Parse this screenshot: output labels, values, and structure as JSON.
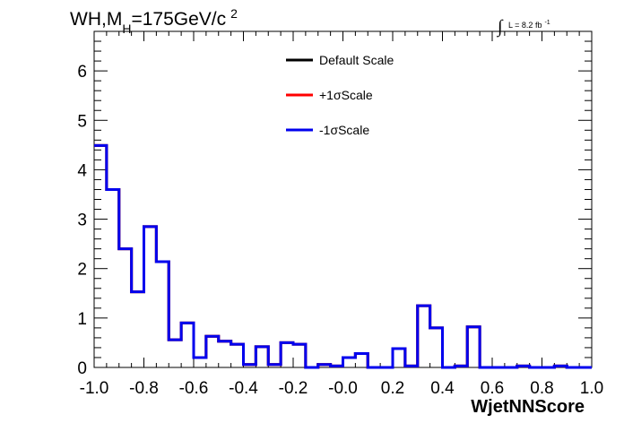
{
  "chart_data": {
    "type": "line",
    "style": "step-histogram",
    "title": {
      "prefix": "WH,M",
      "subscript": "H",
      "suffix": "=175GeV/c",
      "superscript": "2"
    },
    "luminosity": {
      "integral": "∫",
      "text": "L = 8.2 fb",
      "superscript": "-1"
    },
    "xlabel": "WjetNNScore",
    "ylabel": "",
    "xlim": [
      -1.0,
      1.0
    ],
    "ylim": [
      0,
      6.8
    ],
    "x_ticks": [
      -1.0,
      -0.8,
      -0.6,
      -0.4,
      -0.2,
      0.0,
      0.2,
      0.4,
      0.6,
      0.8,
      1.0
    ],
    "x_tick_labels": [
      "-1.0",
      "-0.8",
      "-0.6",
      "-0.4",
      "-0.2",
      "-0.0",
      "0.2",
      "0.4",
      "0.6",
      "0.8",
      "1.0"
    ],
    "y_ticks": [
      0,
      1,
      2,
      3,
      4,
      5,
      6
    ],
    "y_tick_labels": [
      "0",
      "1",
      "2",
      "3",
      "4",
      "5",
      "6"
    ],
    "grid": false,
    "legend_position": "top-center",
    "bin_edges": [
      -1.0,
      -0.95,
      -0.9,
      -0.85,
      -0.8,
      -0.75,
      -0.7,
      -0.65,
      -0.6,
      -0.55,
      -0.5,
      -0.45,
      -0.4,
      -0.35,
      -0.3,
      -0.25,
      -0.2,
      -0.15,
      -0.1,
      -0.05,
      0.0,
      0.05,
      0.1,
      0.15,
      0.2,
      0.25,
      0.3,
      0.35,
      0.4,
      0.45,
      0.5,
      0.55,
      0.6,
      0.65,
      0.7,
      0.75,
      0.8,
      0.85,
      0.9,
      0.95,
      1.0
    ],
    "series": [
      {
        "name": "Default Scale",
        "color": "#000000",
        "values": [
          4.49,
          3.6,
          2.4,
          1.53,
          2.85,
          2.14,
          0.56,
          0.9,
          0.2,
          0.63,
          0.53,
          0.47,
          0.06,
          0.42,
          0.06,
          0.5,
          0.47,
          0.0,
          0.06,
          0.03,
          0.2,
          0.28,
          0.0,
          0.0,
          0.38,
          0.03,
          1.25,
          0.8,
          0.0,
          0.03,
          0.82,
          0.0,
          0.0,
          0.0,
          0.03,
          0.0,
          0.0,
          0.03,
          0.0,
          0.0
        ]
      },
      {
        "name": "+1σScale",
        "color": "#ff0000",
        "values": [
          4.49,
          3.6,
          2.4,
          1.53,
          2.85,
          2.14,
          0.56,
          0.9,
          0.2,
          0.63,
          0.53,
          0.47,
          0.06,
          0.42,
          0.06,
          0.5,
          0.47,
          0.0,
          0.06,
          0.03,
          0.2,
          0.28,
          0.0,
          0.0,
          0.38,
          0.03,
          1.25,
          0.8,
          0.0,
          0.03,
          0.82,
          0.0,
          0.0,
          0.0,
          0.03,
          0.0,
          0.0,
          0.03,
          0.0,
          0.0
        ]
      },
      {
        "name": "-1σScale",
        "color": "#0000ee",
        "values": [
          4.49,
          3.6,
          2.4,
          1.53,
          2.85,
          2.14,
          0.56,
          0.9,
          0.2,
          0.63,
          0.53,
          0.47,
          0.06,
          0.42,
          0.06,
          0.5,
          0.47,
          0.0,
          0.06,
          0.03,
          0.2,
          0.28,
          0.0,
          0.0,
          0.38,
          0.03,
          1.25,
          0.8,
          0.0,
          0.03,
          0.82,
          0.0,
          0.0,
          0.0,
          0.03,
          0.0,
          0.0,
          0.03,
          0.0,
          0.0
        ]
      }
    ]
  }
}
